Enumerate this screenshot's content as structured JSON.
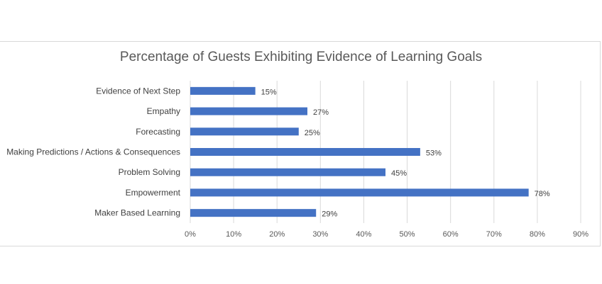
{
  "chart_data": {
    "type": "bar",
    "orientation": "horizontal",
    "title": "Percentage of Guests Exhibiting Evidence of Learning Goals",
    "categories": [
      "Evidence of Next Step",
      "Empathy",
      "Forecasting",
      "Making Predictions / Actions & Consequences",
      "Problem Solving",
      "Empowerment",
      "Maker Based Learning"
    ],
    "values": [
      15,
      27,
      25,
      53,
      45,
      78,
      29
    ],
    "data_labels": [
      "15%",
      "27%",
      "25%",
      "53%",
      "45%",
      "78%",
      "29%"
    ],
    "x_ticks": [
      "0%",
      "10%",
      "20%",
      "30%",
      "40%",
      "50%",
      "60%",
      "70%",
      "80%",
      "90%"
    ],
    "xlim": [
      0,
      90
    ],
    "xlabel": "",
    "ylabel": "",
    "grid": "vertical",
    "legend": "none",
    "bar_color": "#4472c4",
    "grid_color": "#d9d9d9"
  }
}
